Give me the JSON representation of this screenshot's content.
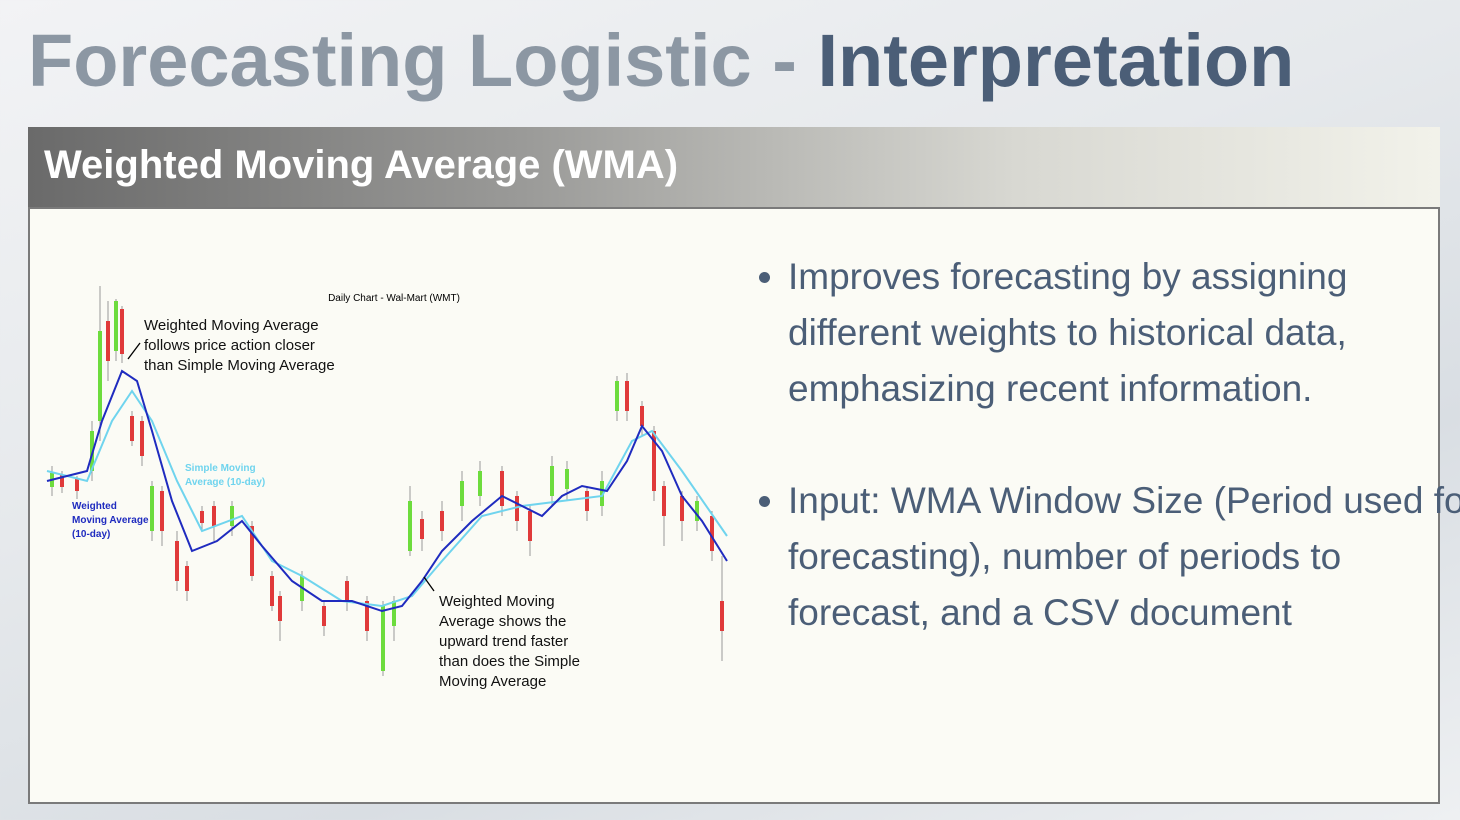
{
  "title": {
    "lead": "Forecasting Logistic -",
    "accent": "Interpretation"
  },
  "section_header": "Weighted Moving Average (WMA)",
  "chart_image": {
    "title": "Daily Chart - Wal-Mart (WMT)",
    "note_top": [
      "Weighted Moving Average",
      "follows price action closer",
      "than Simple Moving Average"
    ],
    "note_bottom": [
      "Weighted Moving",
      "Average shows the",
      "upward trend faster",
      "than does the Simple",
      "Moving Average"
    ],
    "sma_label": [
      "Simple Moving",
      "Average (10-day)"
    ],
    "wma_label": [
      "Weighted",
      "Moving Average",
      "(10-day)"
    ]
  },
  "bullets": [
    "Improves forecasting by assigning different weights to historical data, emphasizing recent information.",
    "Input: WMA Window Size (Period used for forecasting), number of periods to forecast, and a CSV document"
  ]
}
